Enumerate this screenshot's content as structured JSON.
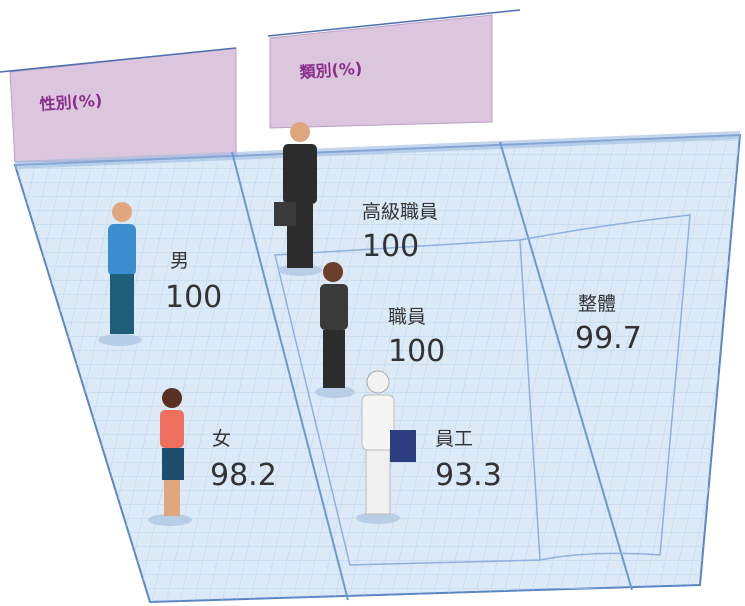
{
  "tabs": [
    "性別(%)",
    "類別(%)"
  ],
  "gender": [
    {
      "label": "男",
      "value": 100
    },
    {
      "label": "女",
      "value": 98.2
    }
  ],
  "category": [
    {
      "label": "高級職員",
      "value": 100
    },
    {
      "label": "職員",
      "value": 100
    },
    {
      "label": "員工",
      "value": 93.3
    }
  ],
  "overall": {
    "label": "整體",
    "value": 99.7
  }
}
